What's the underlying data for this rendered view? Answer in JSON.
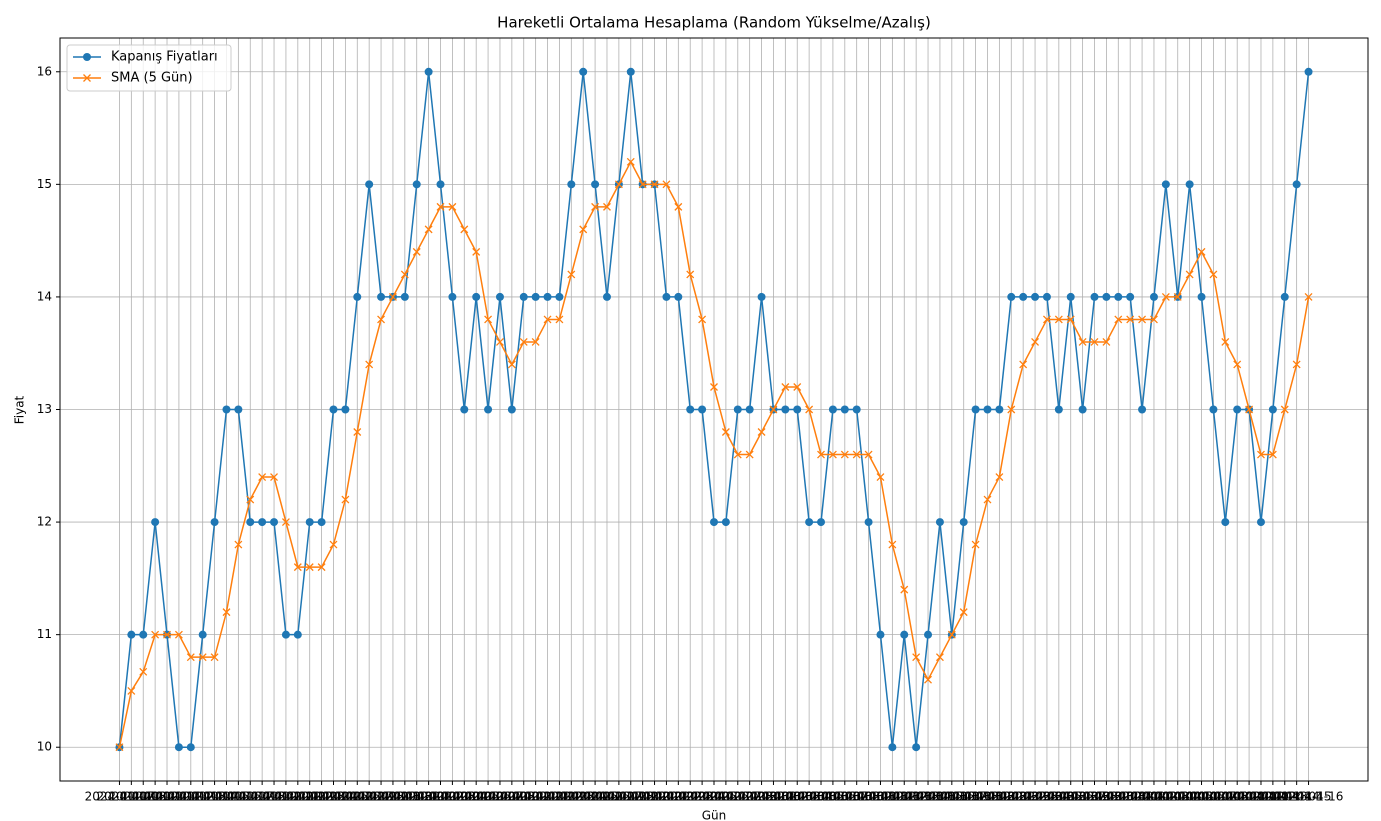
{
  "chart_data": {
    "type": "line",
    "title": "Hareketli Ortalama Hesaplama (Random Yükselme/Azalış)",
    "x_label": "Gün",
    "y_label": "Fiyat",
    "categories": [
      "2024-01-07",
      "2024-01-08",
      "2024-01-09",
      "2024-01-10",
      "2024-01-11",
      "2024-01-12",
      "2024-01-13",
      "2024-01-14",
      "2024-01-15",
      "2024-01-16",
      "2024-01-17",
      "2024-01-18",
      "2024-01-19",
      "2024-01-20",
      "2024-01-21",
      "2024-01-22",
      "2024-01-23",
      "2024-01-24",
      "2024-01-25",
      "2024-01-26",
      "2024-01-27",
      "2024-01-28",
      "2024-01-29",
      "2024-01-30",
      "2024-01-31",
      "2024-02-01",
      "2024-02-02",
      "2024-02-03",
      "2024-02-04",
      "2024-02-05",
      "2024-02-06",
      "2024-02-07",
      "2024-02-08",
      "2024-02-09",
      "2024-02-10",
      "2024-02-11",
      "2024-02-12",
      "2024-02-13",
      "2024-02-14",
      "2024-02-15",
      "2024-02-16",
      "2024-02-17",
      "2024-02-18",
      "2024-02-19",
      "2024-02-20",
      "2024-02-21",
      "2024-02-22",
      "2024-02-23",
      "2024-02-24",
      "2024-02-25",
      "2024-02-26",
      "2024-02-27",
      "2024-02-28",
      "2024-02-29",
      "2024-03-01",
      "2024-03-02",
      "2024-03-03",
      "2024-03-04",
      "2024-03-05",
      "2024-03-06",
      "2024-03-07",
      "2024-03-08",
      "2024-03-09",
      "2024-03-10",
      "2024-03-11",
      "2024-03-12",
      "2024-03-13",
      "2024-03-14",
      "2024-03-15",
      "2024-03-16",
      "2024-03-17",
      "2024-03-18",
      "2024-03-19",
      "2024-03-20",
      "2024-03-21",
      "2024-03-22",
      "2024-03-23",
      "2024-03-24",
      "2024-03-25",
      "2024-03-26",
      "2024-03-27",
      "2024-03-28",
      "2024-03-29",
      "2024-03-30",
      "2024-03-31",
      "2024-04-01",
      "2024-04-02",
      "2024-04-03",
      "2024-04-04",
      "2024-04-05",
      "2024-04-06",
      "2024-04-07",
      "2024-04-08",
      "2024-04-09",
      "2024-04-10",
      "2024-04-11",
      "2024-04-12",
      "2024-04-13",
      "2024-04-14",
      "2024-04-15",
      "2024-04-16"
    ],
    "series": [
      {
        "name": "Kapanış Fiyatları",
        "color": "#1f77b4",
        "marker": "o",
        "values": [
          10,
          11,
          11,
          12,
          11,
          10,
          10,
          11,
          12,
          13,
          13,
          12,
          12,
          12,
          11,
          11,
          12,
          12,
          13,
          13,
          14,
          15,
          14,
          14,
          14,
          15,
          16,
          15,
          14,
          13,
          14,
          13,
          14,
          13,
          14,
          14,
          14,
          14,
          15,
          16,
          15,
          14,
          15,
          16,
          15,
          15,
          14,
          14,
          13,
          13,
          12,
          12,
          13,
          13,
          14,
          13,
          13,
          13,
          12,
          12,
          13,
          13,
          13,
          12,
          11,
          10,
          11,
          10,
          11,
          12,
          11,
          12,
          13,
          13,
          13,
          14,
          14,
          14,
          14,
          13,
          14,
          13,
          14,
          14,
          14,
          14,
          13,
          14,
          15,
          14,
          15,
          14,
          13,
          12,
          13,
          13,
          12,
          13,
          14,
          15,
          16
        ]
      },
      {
        "name": "SMA (5 Gün)",
        "color": "#ff7f0e",
        "marker": "x",
        "values": [
          10,
          10.5,
          10.67,
          11,
          11,
          11,
          10.8,
          10.8,
          10.8,
          11.2,
          11.8,
          12.2,
          12.4,
          12.4,
          12,
          11.6,
          11.6,
          11.6,
          11.8,
          12.2,
          12.8,
          13.4,
          13.8,
          14,
          14.2,
          14.4,
          14.6,
          14.8,
          14.8,
          14.6,
          14.4,
          13.8,
          13.6,
          13.4,
          13.6,
          13.6,
          13.8,
          13.8,
          14.2,
          14.6,
          14.8,
          14.8,
          15,
          15.2,
          15,
          15,
          15,
          14.8,
          14.2,
          13.8,
          13.2,
          12.8,
          12.6,
          12.6,
          12.8,
          13,
          13.2,
          13.2,
          13,
          12.6,
          12.6,
          12.6,
          12.6,
          12.6,
          12.4,
          11.8,
          11.4,
          10.8,
          10.6,
          10.8,
          11,
          11.2,
          11.8,
          12.2,
          12.4,
          13,
          13.4,
          13.6,
          13.8,
          13.8,
          13.8,
          13.6,
          13.6,
          13.6,
          13.8,
          13.8,
          13.8,
          13.8,
          14,
          14,
          14.2,
          14.4,
          14.2,
          13.6,
          13.4,
          13,
          12.6,
          12.6,
          13,
          13.4,
          14
        ]
      }
    ],
    "ylim": [
      9.7,
      16.3
    ],
    "yticks": [
      10,
      11,
      12,
      13,
      14,
      15,
      16
    ],
    "grid": true,
    "legend": "upper left"
  }
}
